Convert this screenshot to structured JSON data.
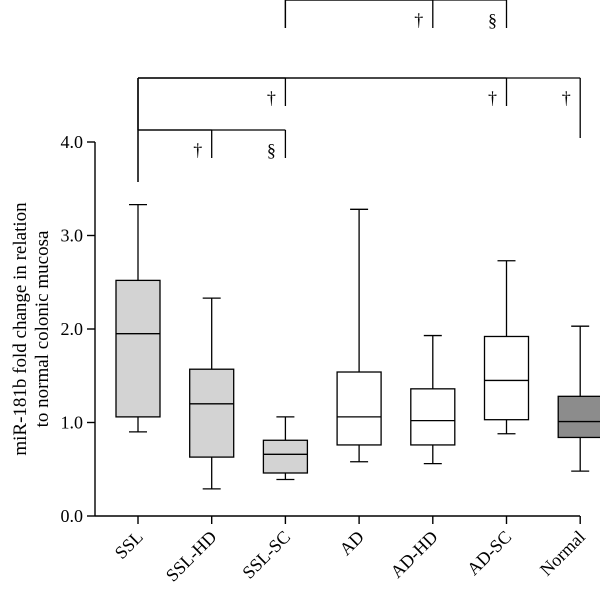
{
  "chart_data": {
    "type": "box",
    "ylabel": "miR-181b fold change in relation to normal colonic mucosa",
    "ylabel_lines": [
      "miR-181b fold change in relation",
      "to normal colonic mucosa"
    ],
    "ylim": [
      0,
      4
    ],
    "yticks": [
      "0.0",
      "1.0",
      "2.0",
      "3.0",
      "4.0"
    ],
    "ytick_values": [
      0,
      1,
      2,
      3,
      4
    ],
    "grid": false,
    "categories": [
      "SSL",
      "SSL-HD",
      "SSL-SC",
      "AD",
      "AD-HD",
      "AD-SC",
      "Normal"
    ],
    "boxes": [
      {
        "min": 0.9,
        "q1": 1.06,
        "median": 1.95,
        "q3": 2.52,
        "max": 3.33,
        "fill": "#d3d3d3"
      },
      {
        "min": 0.29,
        "q1": 0.63,
        "median": 1.2,
        "q3": 1.57,
        "max": 2.33,
        "fill": "#d3d3d3"
      },
      {
        "min": 0.39,
        "q1": 0.46,
        "median": 0.66,
        "q3": 0.81,
        "max": 1.06,
        "fill": "#d3d3d3"
      },
      {
        "min": 0.58,
        "q1": 0.76,
        "median": 1.06,
        "q3": 1.54,
        "max": 3.28,
        "fill": "#ffffff"
      },
      {
        "min": 0.56,
        "q1": 0.76,
        "median": 1.02,
        "q3": 1.36,
        "max": 1.93,
        "fill": "#ffffff"
      },
      {
        "min": 0.88,
        "q1": 1.03,
        "median": 1.45,
        "q3": 1.92,
        "max": 2.73,
        "fill": "#ffffff"
      },
      {
        "min": 0.48,
        "q1": 0.84,
        "median": 1.01,
        "q3": 1.28,
        "max": 2.03,
        "fill": "#8c8c8c"
      }
    ],
    "significance": [
      {
        "level": 0,
        "from": 0,
        "to": 1,
        "drop_from": true,
        "symbol": "†"
      },
      {
        "level": 0,
        "from": 0,
        "to": 2,
        "drop_from": true,
        "symbol": "§"
      },
      {
        "level": 1,
        "from": 0,
        "to": 2,
        "drop_from": true,
        "symbol": "†"
      },
      {
        "level": 1,
        "from": 0,
        "to": 5,
        "drop_from": true,
        "symbol": "†"
      },
      {
        "level": 1,
        "from": 0,
        "to": 6,
        "drop_from": true,
        "symbol": "†"
      },
      {
        "level": 2,
        "from": 2,
        "to": 4,
        "drop_from": false,
        "symbol": "†"
      },
      {
        "level": 2,
        "from": 2,
        "to": 5,
        "drop_from": false,
        "symbol": "§"
      }
    ]
  }
}
